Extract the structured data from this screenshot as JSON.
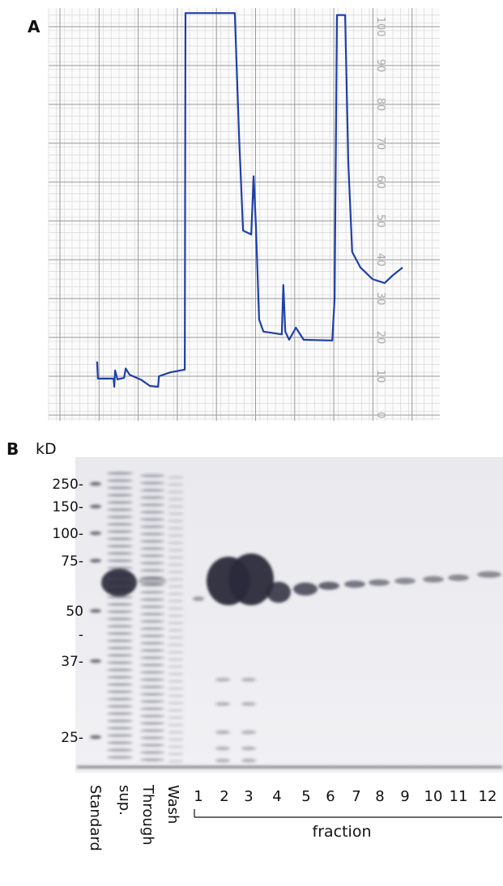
{
  "chart_data": {
    "type": "line",
    "panel_label": "A",
    "xlim": [
      0,
      100
    ],
    "ylim": [
      0,
      100
    ],
    "yticks": [
      0,
      10,
      20,
      30,
      40,
      50,
      60,
      70,
      80,
      90,
      100
    ],
    "series": [
      {
        "color": "#1f3fa8",
        "x": [
          12.4,
          12.6,
          16.6,
          16.8,
          17.0,
          17.6,
          19.3,
          19.7,
          20.7,
          23.8,
          25.9,
          28.0,
          28.2,
          31.1,
          34.8,
          35.0,
          47.6,
          48.7,
          49.7,
          51.8,
          52.4,
          53.0,
          53.8,
          54.9,
          59.6,
          60.0,
          60.5,
          61.5,
          63.2,
          65.2,
          72.5,
          73.1,
          73.7,
          75.8,
          76.6,
          77.6,
          79.7,
          82.8,
          85.9,
          88.0,
          90.5
        ],
        "values": [
          13.8,
          9.4,
          9.4,
          7.3,
          11.5,
          9.2,
          9.6,
          12,
          10.4,
          9,
          7.5,
          7.3,
          10,
          11,
          11.7,
          103.5,
          103.5,
          71.5,
          47.5,
          46.5,
          61.5,
          48.5,
          24.6,
          21.5,
          20.8,
          33.5,
          21.5,
          19.4,
          22.5,
          19.4,
          19.2,
          30,
          103,
          103,
          65,
          42,
          38,
          35,
          34,
          36,
          38
        ]
      }
    ]
  },
  "gel": {
    "panel_label": "B",
    "unit": "kD",
    "markers": [
      "250-",
      "150-",
      "100-",
      "75-",
      "50",
      "-",
      "37-",
      "25-"
    ],
    "lanes": [
      "Standard",
      "sup.",
      "Through",
      "Wash"
    ],
    "fractions": [
      "1",
      "2",
      "3",
      "4",
      "5",
      "6",
      "7",
      "8",
      "9",
      "10",
      "11",
      "12"
    ],
    "fraction_label": "fraction"
  }
}
